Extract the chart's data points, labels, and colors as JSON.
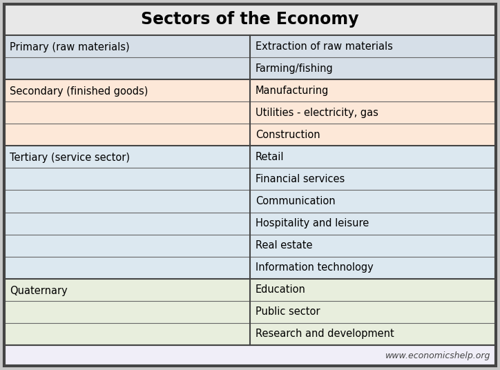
{
  "title": "Sectors of the Economy",
  "title_fontsize": 17,
  "title_bg": "#e8e8e8",
  "footer_text": "www.economicshelp.org",
  "footer_bg": "#f0f0f0",
  "outer_border_color": "#444444",
  "cell_border_color": "#666666",
  "col_split": 0.5,
  "sectors": [
    {
      "label": "Primary (raw materials)",
      "items": [
        "Extraction of raw materials",
        "Farming/fishing"
      ],
      "bg_color": "#d6dfe8",
      "item_bg": "#d6dfe8"
    },
    {
      "label": "Secondary (finished goods)",
      "items": [
        "Manufacturing",
        "Utilities - electricity, gas",
        "Construction"
      ],
      "bg_color": "#fde8d8",
      "item_bg": "#fde8d8"
    },
    {
      "label": "Tertiary (service sector)",
      "items": [
        "Retail",
        "Financial services",
        "Communication",
        "Hospitality and leisure",
        "Real estate",
        "Information technology"
      ],
      "bg_color": "#dce8f0",
      "item_bg": "#dce8f0"
    },
    {
      "label": "Quaternary",
      "items": [
        "Education",
        "Public sector",
        "Research and development"
      ],
      "bg_color": "#e8eedd",
      "item_bg": "#e8eedd"
    }
  ],
  "text_fontsize": 10.5,
  "label_fontsize": 10.5
}
